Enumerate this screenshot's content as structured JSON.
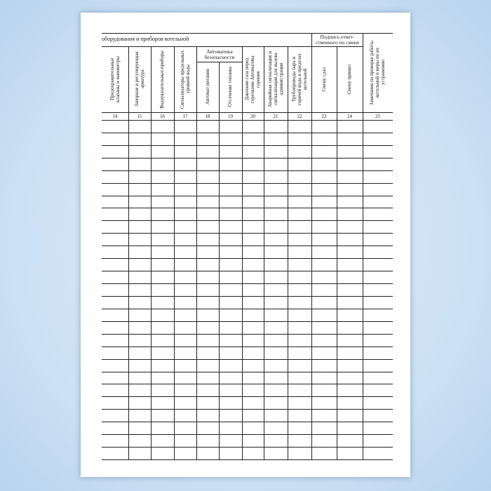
{
  "title": "оборудования и приборов котельной",
  "groups": {
    "automation": "Автоматика безопасности",
    "signature": "Подпись ответ-ственного по смене"
  },
  "columns": [
    {
      "num": "14",
      "label": "Предохранительные клапаны и манометры"
    },
    {
      "num": "15",
      "label": "Запорная и регулирующая арматура"
    },
    {
      "num": "16",
      "label": "Водоуказательные приборы"
    },
    {
      "num": "17",
      "label": "Сигнализаторы предельных уровней воды"
    },
    {
      "num": "18",
      "label": "Автомат питания"
    },
    {
      "num": "19",
      "label": "Отсечение топлива"
    },
    {
      "num": "20",
      "label": "Давление газа перед горелками Автоматика горения"
    },
    {
      "num": "21",
      "label": "Аварийная сигнализация и сигнализация для вызова администрации"
    },
    {
      "num": "22",
      "label": "Трубопроводы пара и горячей воды в пределах котельной"
    },
    {
      "num": "23",
      "label": "Смену сдал"
    },
    {
      "num": "24",
      "label": "Смену принял"
    },
    {
      "num": "25",
      "label": "Замечания по проверке работы котельной и меры по их устранению"
    }
  ]
}
